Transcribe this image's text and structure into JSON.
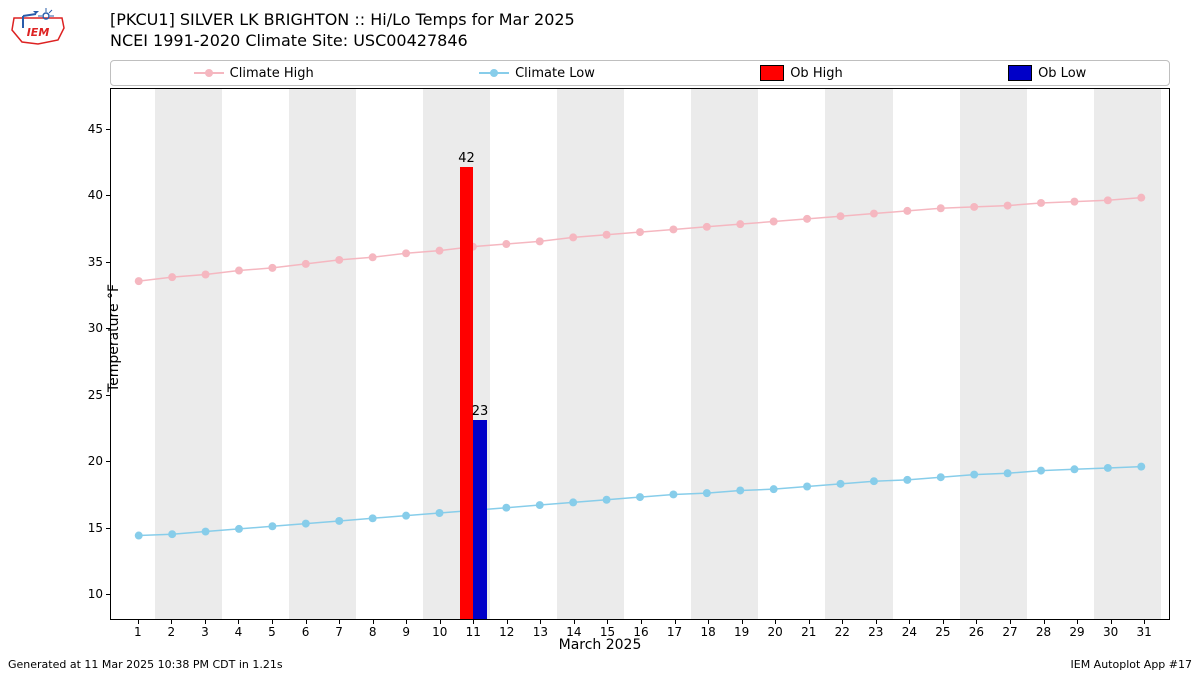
{
  "title": {
    "line1": "[PKCU1] SILVER LK BRIGHTON :: Hi/Lo Temps for Mar 2025",
    "line2": "NCEI 1991-2020 Climate Site: USC00427846"
  },
  "legend": {
    "climate_high": "Climate High",
    "climate_low": "Climate Low",
    "ob_high": "Ob High",
    "ob_low": "Ob Low"
  },
  "axes": {
    "ylabel": "Temperature °F",
    "xlabel": "March 2025",
    "ylim": [
      8,
      48
    ],
    "yticks": [
      10,
      15,
      20,
      25,
      30,
      35,
      40,
      45
    ],
    "xlim": [
      0.2,
      31.8
    ],
    "xticks": [
      1,
      2,
      3,
      4,
      5,
      6,
      7,
      8,
      9,
      10,
      11,
      12,
      13,
      14,
      15,
      16,
      17,
      18,
      19,
      20,
      21,
      22,
      23,
      24,
      25,
      26,
      27,
      28,
      29,
      30,
      31
    ]
  },
  "bands": {
    "color": "#ebebeb",
    "ranges": [
      [
        1.5,
        3.5
      ],
      [
        5.5,
        7.5
      ],
      [
        9.5,
        11.5
      ],
      [
        13.5,
        15.5
      ],
      [
        17.5,
        19.5
      ],
      [
        21.5,
        23.5
      ],
      [
        25.5,
        27.5
      ],
      [
        29.5,
        31.5
      ]
    ]
  },
  "series": {
    "climate_high": {
      "color": "#f5b7c0",
      "marker_size": 8,
      "line_width": 1.5,
      "y": [
        33.5,
        33.8,
        34.0,
        34.3,
        34.5,
        34.8,
        35.1,
        35.3,
        35.6,
        35.8,
        36.1,
        36.3,
        36.5,
        36.8,
        37.0,
        37.2,
        37.4,
        37.6,
        37.8,
        38.0,
        38.2,
        38.4,
        38.6,
        38.8,
        39.0,
        39.1,
        39.2,
        39.4,
        39.5,
        39.6,
        39.8
      ]
    },
    "climate_low": {
      "color": "#87cdea",
      "marker_size": 8,
      "line_width": 1.5,
      "y": [
        14.3,
        14.4,
        14.6,
        14.8,
        15.0,
        15.2,
        15.4,
        15.6,
        15.8,
        16.0,
        16.2,
        16.4,
        16.6,
        16.8,
        17.0,
        17.2,
        17.4,
        17.5,
        17.7,
        17.8,
        18.0,
        18.2,
        18.4,
        18.5,
        18.7,
        18.9,
        19.0,
        19.2,
        19.3,
        19.4,
        19.5
      ]
    }
  },
  "bars": {
    "ob_high": {
      "day": 11,
      "value": 42,
      "color": "#ff0000",
      "width": 0.4,
      "offset": -0.2,
      "label": "42"
    },
    "ob_low": {
      "day": 11,
      "value": 23,
      "color": "#0000c8",
      "width": 0.4,
      "offset": 0.2,
      "label": "23"
    }
  },
  "footer": {
    "left": "Generated at 11 Mar 2025 10:38 PM CDT in 1.21s",
    "right": "IEM Autoplot App #17"
  },
  "colors": {
    "pink": "#f5b7c0",
    "blue": "#87cdea",
    "red": "#ff0000",
    "navy": "#0000c8",
    "iem_red": "#d22",
    "iem_blue": "#2a5caa"
  }
}
